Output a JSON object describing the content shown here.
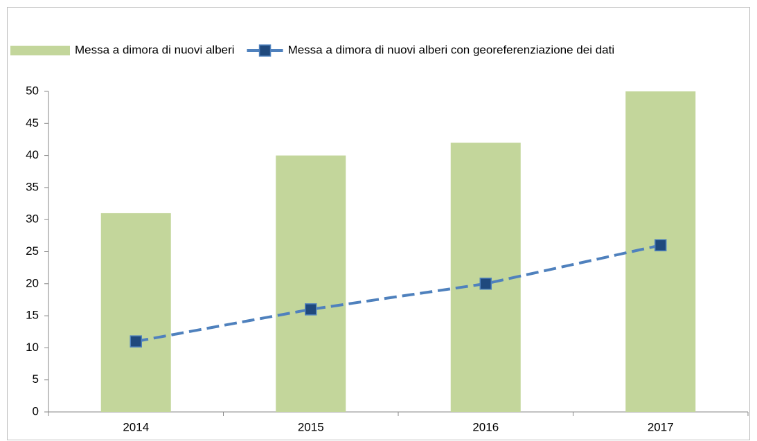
{
  "chart_data": {
    "type": "bar",
    "categories": [
      "2014",
      "2015",
      "2016",
      "2017"
    ],
    "series": [
      {
        "name": "Messa a dimora di nuovi alberi",
        "type": "bar",
        "color": "#c3d69b",
        "values": [
          31,
          40,
          42,
          50
        ]
      },
      {
        "name": "Messa a dimora di nuovi alberi con georeferenziazione dei dati",
        "type": "line",
        "line_style": "dashed",
        "color": "#4f81bd",
        "marker_color": "#1f497d",
        "values": [
          11,
          16,
          20,
          26
        ]
      }
    ],
    "ylim": [
      0,
      50
    ],
    "yticks": [
      0,
      5,
      10,
      15,
      20,
      25,
      30,
      35,
      40,
      45,
      50
    ],
    "grid": false,
    "legend": "top"
  }
}
